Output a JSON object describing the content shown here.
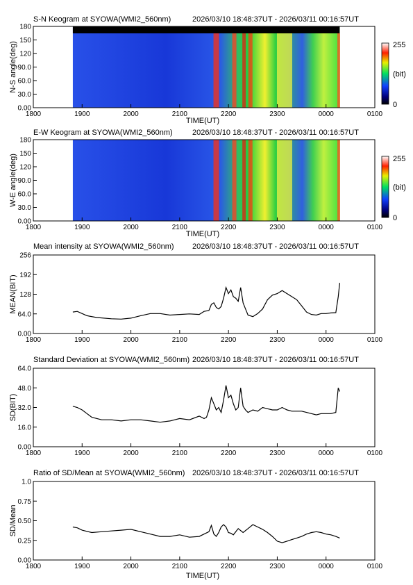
{
  "time_range": "2026/03/10 18:48:37UT - 2026/03/11 00:16:57UT",
  "x_axis": {
    "label": "TIME(UT)",
    "ticks": [
      "1800",
      "1900",
      "2000",
      "2100",
      "2200",
      "2300",
      "0000",
      "0100"
    ],
    "range_hours": [
      18.0,
      25.0
    ],
    "data_start_hour": 18.81,
    "data_end_hour": 24.28
  },
  "keograms": [
    {
      "id": "sn",
      "title": "S-N Keogram at SYOWA(WMI2_560nm)",
      "ylabel": "N-S angle(deg)",
      "yticks": [
        "0.00",
        "30.0",
        "60.0",
        "90.0",
        "120",
        "150",
        "180"
      ],
      "yrange": [
        0,
        180
      ],
      "colorbar": {
        "max_label": "255",
        "mid_label": "(bit)",
        "min_label": "0"
      }
    },
    {
      "id": "ew",
      "title": "E-W Keogram at SYOWA(WMI2_560nm)",
      "ylabel": "W-E angle(deg)",
      "yticks": [
        "0.00",
        "30.0",
        "60.0",
        "90.0",
        "120",
        "150",
        "180"
      ],
      "yrange": [
        0,
        180
      ],
      "colorbar": {
        "max_label": "255",
        "mid_label": "(bit)",
        "min_label": "0"
      }
    }
  ],
  "chart_data": [
    {
      "type": "line",
      "title": "Mean intensity at SYOWA(WMI2_560nm)",
      "ylabel": "MEAN(BIT)",
      "xlabel": "",
      "yticks": [
        "0.00",
        "64.0",
        "128",
        "192",
        "256"
      ],
      "ylim": [
        0,
        256
      ],
      "x": [
        18.81,
        18.9,
        19.0,
        19.1,
        19.3,
        19.6,
        19.8,
        20.0,
        20.2,
        20.4,
        20.6,
        20.8,
        21.0,
        21.2,
        21.4,
        21.5,
        21.6,
        21.65,
        21.7,
        21.75,
        21.8,
        21.85,
        21.9,
        21.95,
        22.0,
        22.05,
        22.1,
        22.15,
        22.2,
        22.25,
        22.3,
        22.35,
        22.4,
        22.5,
        22.6,
        22.7,
        22.8,
        22.9,
        23.0,
        23.1,
        23.2,
        23.3,
        23.4,
        23.5,
        23.6,
        23.7,
        23.8,
        23.9,
        24.0,
        24.1,
        24.2,
        24.25,
        24.28
      ],
      "y": [
        70,
        72,
        65,
        58,
        52,
        48,
        47,
        50,
        58,
        65,
        65,
        60,
        62,
        64,
        62,
        72,
        75,
        95,
        100,
        85,
        80,
        88,
        115,
        150,
        130,
        142,
        120,
        115,
        105,
        150,
        100,
        80,
        60,
        55,
        65,
        80,
        110,
        125,
        130,
        140,
        130,
        120,
        110,
        90,
        70,
        62,
        60,
        65,
        65,
        67,
        68,
        120,
        165
      ]
    },
    {
      "type": "line",
      "title": "Standard Deviation at SYOWA(WMI2_560nm)",
      "ylabel": "SD(BIT)",
      "xlabel": "",
      "yticks": [
        "0.00",
        "16.0",
        "32.0",
        "48.0",
        "64.0"
      ],
      "ylim": [
        0,
        64
      ],
      "x": [
        18.81,
        18.9,
        19.0,
        19.1,
        19.2,
        19.4,
        19.6,
        19.8,
        20.0,
        20.2,
        20.4,
        20.6,
        20.8,
        21.0,
        21.2,
        21.4,
        21.5,
        21.55,
        21.6,
        21.65,
        21.7,
        21.75,
        21.8,
        21.85,
        21.9,
        21.95,
        22.0,
        22.05,
        22.1,
        22.15,
        22.2,
        22.25,
        22.3,
        22.35,
        22.4,
        22.5,
        22.6,
        22.7,
        22.8,
        22.9,
        23.0,
        23.1,
        23.2,
        23.3,
        23.4,
        23.5,
        23.6,
        23.7,
        23.8,
        23.9,
        24.0,
        24.1,
        24.2,
        24.25,
        24.28
      ],
      "y": [
        33,
        32,
        30,
        27,
        24,
        22,
        22,
        21,
        22,
        22,
        21,
        20,
        21,
        23,
        22,
        25,
        23,
        24,
        30,
        40,
        35,
        30,
        32,
        28,
        38,
        50,
        40,
        42,
        35,
        30,
        32,
        48,
        33,
        30,
        28,
        30,
        29,
        32,
        31,
        30,
        30,
        32,
        30,
        29,
        29,
        29,
        28,
        27,
        26,
        27,
        27,
        27,
        28,
        48,
        45
      ]
    },
    {
      "type": "line",
      "title": "Ratio of SD/Mean at SYOWA(WMI2_560nm)",
      "ylabel": "SD/Mean",
      "xlabel": "TIME(UT)",
      "yticks": [
        "0.00",
        "0.25",
        "0.50",
        "0.75",
        "1.0"
      ],
      "ylim": [
        0,
        1.0
      ],
      "x": [
        18.81,
        18.9,
        19.0,
        19.2,
        19.4,
        19.6,
        19.8,
        20.0,
        20.2,
        20.4,
        20.6,
        20.8,
        21.0,
        21.2,
        21.4,
        21.5,
        21.6,
        21.65,
        21.7,
        21.75,
        21.8,
        21.85,
        21.9,
        21.95,
        22.0,
        22.05,
        22.1,
        22.2,
        22.3,
        22.4,
        22.5,
        22.6,
        22.7,
        22.8,
        22.9,
        23.0,
        23.1,
        23.2,
        23.3,
        23.4,
        23.5,
        23.6,
        23.7,
        23.8,
        23.9,
        24.0,
        24.1,
        24.2,
        24.28
      ],
      "y": [
        0.42,
        0.41,
        0.38,
        0.35,
        0.36,
        0.37,
        0.38,
        0.39,
        0.36,
        0.33,
        0.3,
        0.3,
        0.32,
        0.29,
        0.3,
        0.33,
        0.36,
        0.44,
        0.33,
        0.3,
        0.35,
        0.42,
        0.45,
        0.42,
        0.35,
        0.34,
        0.32,
        0.4,
        0.35,
        0.4,
        0.45,
        0.42,
        0.39,
        0.35,
        0.3,
        0.24,
        0.22,
        0.24,
        0.26,
        0.28,
        0.3,
        0.33,
        0.35,
        0.36,
        0.35,
        0.33,
        0.32,
        0.3,
        0.28
      ]
    }
  ]
}
